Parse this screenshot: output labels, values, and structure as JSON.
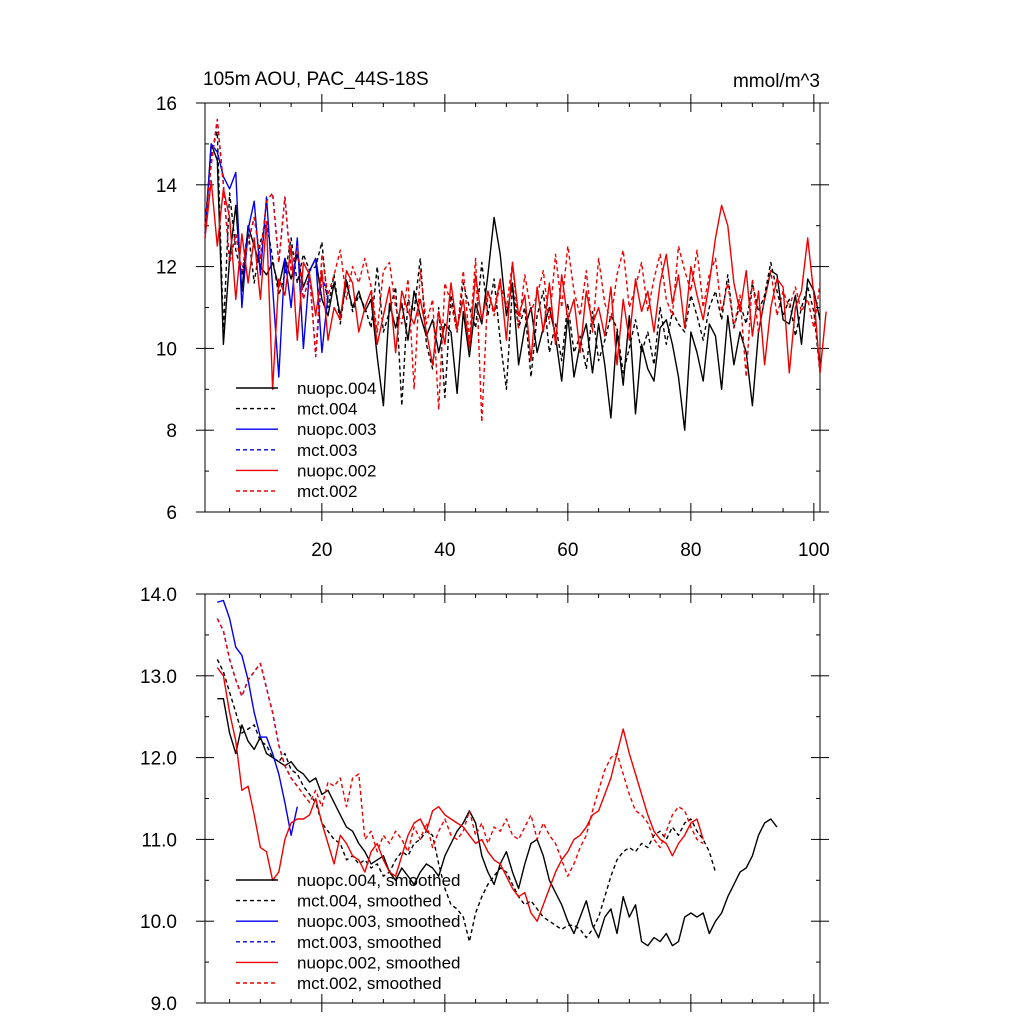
{
  "chart_data": [
    {
      "type": "line",
      "title": "105m AOU, PAC_44S-18S",
      "units": "mmol/m^3",
      "xlim": [
        1,
        101
      ],
      "ylim": [
        6,
        16
      ],
      "xticks": [
        20,
        40,
        60,
        80,
        100
      ],
      "yticks": [
        6,
        8,
        10,
        12,
        14,
        16
      ],
      "ytick_labels": [
        "6",
        "8",
        "10",
        "12",
        "14",
        "16"
      ],
      "legend_position": "lower-left",
      "series": [
        {
          "name": "nuopc.004",
          "color": "#000000",
          "dash": "solid",
          "x_start": 1,
          "values": [
            12.8,
            15.0,
            14.6,
            10.1,
            12.2,
            13.5,
            11.4,
            13.0,
            12.5,
            12.0,
            11.8,
            12.1,
            11.5,
            12.2,
            11.7,
            12.3,
            11.5,
            11.9,
            12.2,
            11.2,
            10.8,
            11.6,
            10.8,
            11.6,
            11.0,
            11.4,
            10.9,
            11.2,
            9.8,
            8.6,
            11.1,
            10.5,
            11.1,
            10.2,
            11.4,
            10.8,
            10.3,
            10.7,
            9.9,
            10.6,
            10.4,
            8.9,
            10.9,
            9.8,
            11.1,
            10.6,
            11.8,
            13.2,
            12.3,
            10.8,
            11.6,
            9.6,
            10.5,
            11.0,
            9.9,
            10.5,
            11.0,
            10.3,
            9.2,
            10.8,
            9.3,
            10.1,
            10.6,
            9.4,
            10.6,
            9.6,
            8.3,
            10.4,
            9.1,
            10.8,
            8.4,
            10.1,
            9.5,
            9.2,
            10.5,
            10.7,
            10.1,
            9.3,
            8.0,
            10.4,
            9.9,
            9.2,
            10.6,
            10.3,
            9.0,
            10.8,
            9.6,
            10.4,
            9.9,
            8.6,
            10.4,
            11.2,
            11.9,
            11.8,
            10.7,
            10.6,
            11.3,
            10.1,
            11.7,
            11.4,
            10.7
          ]
        },
        {
          "name": "mct.004",
          "color": "#000000",
          "dash": "dashed",
          "x_start": 1,
          "values": [
            13.0,
            14.8,
            15.3,
            10.4,
            13.8,
            12.4,
            11.8,
            12.9,
            11.6,
            12.6,
            13.1,
            12.2,
            11.3,
            11.8,
            12.7,
            11.6,
            12.3,
            11.9,
            12.0,
            12.6,
            11.0,
            11.8,
            10.6,
            11.7,
            10.9,
            11.3,
            11.0,
            10.5,
            12.0,
            10.4,
            10.9,
            11.5,
            8.6,
            11.2,
            10.9,
            12.2,
            10.1,
            9.5,
            11.0,
            8.8,
            11.3,
            10.4,
            11.6,
            11.0,
            10.5,
            12.1,
            10.8,
            11.7,
            10.2,
            9.0,
            11.5,
            10.5,
            11.0,
            9.3,
            10.8,
            11.4,
            9.9,
            10.6,
            9.7,
            11.1,
            9.9,
            10.3,
            9.5,
            10.9,
            9.7,
            10.2,
            10.8,
            10.5,
            9.4,
            10.0,
            10.7,
            9.9,
            10.4,
            9.6,
            11.0,
            10.1,
            10.9,
            10.6,
            10.4,
            11.3,
            10.8,
            10.2,
            11.0,
            11.4,
            10.7,
            11.8,
            10.5,
            11.1,
            10.6,
            11.6,
            10.9,
            11.3,
            12.1,
            11.4,
            10.8,
            11.2,
            10.3,
            11.0,
            11.5,
            10.9,
            9.4
          ]
        },
        {
          "name": "nuopc.003",
          "color": "#0000ee",
          "dash": "solid",
          "x_start": 1,
          "values": [
            12.7,
            15.0,
            14.8,
            14.2,
            13.9,
            14.3,
            11.0,
            12.9,
            13.6,
            11.8,
            13.7,
            11.5,
            9.3,
            12.2,
            11.0,
            12.7,
            10.0,
            11.9,
            12.2,
            9.9,
            11.3
          ]
        },
        {
          "name": "mct.003",
          "color": "#0000ee",
          "dash": "dashed",
          "x_start": 1,
          "values": [
            13.0,
            14.5,
            15.6,
            14.0,
            12.1,
            12.8,
            11.9,
            12.6,
            13.2,
            12.2,
            13.6,
            13.8,
            12.1,
            13.7,
            11.9,
            12.5,
            11.2,
            11.8,
            9.8,
            11.8,
            11.2
          ]
        },
        {
          "name": "nuopc.002",
          "color": "#ee0000",
          "dash": "solid",
          "x_start": 1,
          "values": [
            12.7,
            14.1,
            12.5,
            13.9,
            13.2,
            11.2,
            12.8,
            11.6,
            12.7,
            11.2,
            13.1,
            9.0,
            11.7,
            11.3,
            12.5,
            10.2,
            12.1,
            11.8,
            10.8,
            11.9,
            10.2,
            11.0,
            10.7,
            11.9,
            11.6,
            10.4,
            11.0,
            11.4,
            10.1,
            10.8,
            11.5,
            9.9,
            11.4,
            10.9,
            10.6,
            11.2,
            10.4,
            9.6,
            10.9,
            10.1,
            11.6,
            10.5,
            11.2,
            10.0,
            11.8,
            10.7,
            11.4,
            10.9,
            11.7,
            10.2,
            12.1,
            10.8,
            11.3,
            9.7,
            11.5,
            10.4,
            11.6,
            10.1,
            11.8,
            10.7,
            11.2,
            9.9,
            11.4,
            10.6,
            11.0,
            10.3,
            11.5,
            9.6,
            11.2,
            10.2,
            11.7,
            10.9,
            11.4,
            10.4,
            11.6,
            12.3,
            11.1,
            11.8,
            10.5,
            12.0,
            11.3,
            10.7,
            11.6,
            12.7,
            13.5,
            13.0,
            11.6,
            10.9,
            11.9,
            10.3,
            11.4,
            9.6,
            11.0,
            11.7,
            11.5,
            9.4,
            11.0,
            11.4,
            12.7,
            11.3,
            9.4,
            10.9
          ]
        },
        {
          "name": "mct.002",
          "color": "#ee0000",
          "dash": "dashed",
          "x_start": 1,
          "values": [
            13.0,
            14.5,
            15.6,
            14.0,
            12.1,
            12.8,
            11.9,
            12.6,
            13.2,
            12.2,
            13.6,
            13.8,
            12.1,
            13.7,
            11.9,
            12.5,
            11.2,
            11.8,
            9.8,
            12.3,
            11.3,
            11.8,
            12.4,
            11.2,
            12.0,
            11.6,
            12.2,
            11.5,
            10.4,
            11.9,
            12.1,
            11.0,
            10.6,
            11.7,
            9.0,
            11.9,
            10.6,
            11.2,
            8.5,
            11.6,
            11.1,
            10.4,
            11.9,
            10.2,
            12.2,
            8.2,
            11.4,
            10.8,
            11.6,
            11.0,
            12.1,
            10.5,
            11.8,
            10.9,
            11.3,
            11.9,
            10.6,
            12.3,
            11.0,
            12.5,
            11.4,
            10.8,
            11.9,
            10.4,
            12.2,
            11.1,
            10.7,
            11.8,
            12.4,
            11.0,
            11.5,
            12.1,
            10.9,
            11.7,
            12.3,
            11.2,
            10.8,
            12.5,
            11.9,
            11.4,
            12.4,
            11.0,
            11.8,
            12.2,
            10.9,
            11.6,
            10.5,
            11.3,
            9.3,
            11.7,
            10.4,
            11.2,
            11.9,
            10.8,
            11.4,
            11.0,
            11.5,
            10.9,
            11.2,
            10.5,
            11.6
          ]
        }
      ],
      "legend": [
        {
          "label": "nuopc.004",
          "color": "#000000",
          "dash": "solid"
        },
        {
          "label": "mct.004",
          "color": "#000000",
          "dash": "dashed"
        },
        {
          "label": "nuopc.003",
          "color": "#0000ee",
          "dash": "solid"
        },
        {
          "label": "mct.003",
          "color": "#0000ee",
          "dash": "dashed"
        },
        {
          "label": "nuopc.002",
          "color": "#ee0000",
          "dash": "solid"
        },
        {
          "label": "mct.002",
          "color": "#ee0000",
          "dash": "dashed"
        }
      ]
    },
    {
      "type": "line",
      "title": "",
      "xlim": [
        1,
        101
      ],
      "ylim": [
        9.0,
        14.0
      ],
      "xticks": [
        20,
        40,
        60,
        80,
        100
      ],
      "show_xtick_labels": false,
      "yticks": [
        9.0,
        10.0,
        11.0,
        12.0,
        13.0,
        14.0
      ],
      "ytick_labels": [
        "9.0",
        "10.0",
        "11.0",
        "12.0",
        "13.0",
        "14.0"
      ],
      "legend_position": "lower-left",
      "series": [
        {
          "name": "nuopc.004, smoothed",
          "color": "#000000",
          "dash": "solid",
          "x_start": 3,
          "values": [
            12.72,
            12.72,
            12.3,
            12.05,
            12.4,
            12.2,
            12.1,
            12.25,
            12.05,
            12.0,
            11.95,
            11.9,
            11.95,
            11.85,
            11.8,
            11.7,
            11.75,
            11.55,
            11.6,
            11.45,
            11.3,
            11.15,
            11.1,
            10.95,
            10.85,
            10.7,
            10.75,
            10.8,
            10.6,
            10.5,
            10.65,
            10.55,
            10.45,
            10.6,
            10.7,
            10.65,
            10.55,
            10.8,
            10.95,
            11.1,
            11.2,
            11.35,
            11.2,
            10.8,
            10.6,
            10.45,
            10.7,
            10.85,
            10.6,
            10.4,
            10.7,
            10.95,
            11.0,
            10.8,
            10.5,
            10.35,
            10.2,
            10.0,
            9.85,
            10.05,
            10.25,
            9.95,
            9.8,
            10.05,
            10.15,
            9.85,
            10.3,
            10.05,
            10.2,
            9.75,
            9.7,
            9.8,
            9.75,
            9.85,
            9.7,
            9.75,
            10.05,
            10.1,
            10.05,
            10.1,
            9.85,
            10.0,
            10.1,
            10.3,
            10.45,
            10.6,
            10.65,
            10.8,
            11.05,
            11.2,
            11.25,
            11.15
          ]
        },
        {
          "name": "mct.004, smoothed",
          "color": "#000000",
          "dash": "dashed",
          "x_start": 3,
          "values": [
            13.2,
            13.05,
            12.8,
            12.55,
            12.3,
            12.35,
            12.4,
            12.2,
            12.15,
            12.0,
            11.95,
            12.05,
            11.85,
            11.8,
            11.65,
            11.55,
            11.45,
            11.2,
            11.1,
            11.0,
            10.95,
            10.75,
            10.8,
            10.7,
            10.75,
            10.65,
            10.7,
            10.55,
            10.6,
            10.75,
            10.85,
            10.8,
            10.95,
            11.0,
            11.1,
            11.05,
            10.7,
            10.4,
            10.2,
            10.15,
            10.05,
            9.75,
            10.1,
            10.3,
            10.45,
            10.55,
            10.65,
            10.6,
            10.45,
            10.3,
            10.2,
            10.25,
            10.15,
            10.05,
            10.0,
            9.95,
            9.9,
            9.95,
            9.95,
            9.9,
            9.8,
            9.9,
            10.05,
            10.3,
            10.55,
            10.75,
            10.85,
            10.9,
            10.85,
            10.95,
            10.9,
            11.05,
            11.1,
            11.0,
            11.15,
            11.05,
            11.2,
            11.25,
            11.1,
            11.0,
            10.85,
            10.6
          ]
        },
        {
          "name": "nuopc.003, smoothed",
          "color": "#0000ee",
          "dash": "solid",
          "x_start": 3,
          "values": [
            13.9,
            13.92,
            13.7,
            13.35,
            13.25,
            12.95,
            12.55,
            12.25,
            12.25,
            12.05,
            11.8,
            11.45,
            11.05,
            11.4
          ]
        },
        {
          "name": "mct.003, smoothed",
          "color": "#0000ee",
          "dash": "dashed",
          "x_start": 3,
          "values": [
            13.7,
            13.55,
            13.2,
            12.95,
            12.75,
            12.95,
            13.05,
            13.15,
            12.85,
            12.55,
            12.15,
            11.9,
            11.75,
            11.65
          ]
        },
        {
          "name": "nuopc.002, smoothed",
          "color": "#ee0000",
          "dash": "solid",
          "x_start": 3,
          "values": [
            13.1,
            13.0,
            12.55,
            12.2,
            11.6,
            11.65,
            11.3,
            10.9,
            10.85,
            10.5,
            10.6,
            11.0,
            11.2,
            11.25,
            11.25,
            11.3,
            11.5,
            11.2,
            10.95,
            10.7,
            11.05,
            10.95,
            10.8,
            10.75,
            10.6,
            10.85,
            10.95,
            10.75,
            10.6,
            10.55,
            10.8,
            11.05,
            11.2,
            11.25,
            11.1,
            11.35,
            11.4,
            11.3,
            11.25,
            11.2,
            11.15,
            11.05,
            10.95,
            11.0,
            10.85,
            10.75,
            10.7,
            10.55,
            10.4,
            10.3,
            10.35,
            10.1,
            10.0,
            10.2,
            10.4,
            10.6,
            10.75,
            10.85,
            11.0,
            11.05,
            11.15,
            11.3,
            11.35,
            11.55,
            11.75,
            12.05,
            12.35,
            12.05,
            11.8,
            11.55,
            11.3,
            11.1,
            11.0,
            10.95,
            10.8,
            10.95,
            11.05,
            11.2,
            11.25,
            11.0
          ]
        },
        {
          "name": "mct.002, smoothed",
          "color": "#ee0000",
          "dash": "dashed",
          "x_start": 3,
          "values": [
            13.7,
            13.55,
            13.2,
            12.95,
            12.75,
            12.95,
            13.05,
            13.15,
            12.85,
            12.55,
            12.15,
            11.9,
            11.75,
            11.65,
            11.55,
            11.45,
            11.6,
            11.4,
            11.7,
            11.65,
            11.75,
            11.4,
            11.75,
            11.8,
            11.0,
            11.1,
            10.85,
            11.05,
            10.95,
            11.1,
            11.0,
            10.85,
            11.15,
            11.0,
            11.2,
            10.9,
            11.1,
            11.25,
            11.05,
            11.0,
            11.1,
            11.35,
            11.05,
            11.2,
            10.95,
            11.15,
            11.1,
            11.25,
            11.05,
            11.0,
            11.15,
            11.3,
            11.0,
            11.2,
            11.05,
            10.95,
            10.75,
            10.55,
            10.7,
            10.9,
            11.05,
            11.35,
            11.6,
            11.85,
            12.0,
            12.05,
            11.8,
            11.55,
            11.35,
            11.3,
            11.2,
            11.0,
            10.9,
            11.1,
            11.3,
            11.4,
            11.35,
            11.15,
            11.0,
            10.95
          ]
        }
      ],
      "legend": [
        {
          "label": "nuopc.004, smoothed",
          "color": "#000000",
          "dash": "solid"
        },
        {
          "label": "mct.004, smoothed",
          "color": "#000000",
          "dash": "dashed"
        },
        {
          "label": "nuopc.003, smoothed",
          "color": "#0000ee",
          "dash": "solid"
        },
        {
          "label": "mct.003, smoothed",
          "color": "#0000ee",
          "dash": "dashed"
        },
        {
          "label": "nuopc.002, smoothed",
          "color": "#ee0000",
          "dash": "solid"
        },
        {
          "label": "mct.002, smoothed",
          "color": "#ee0000",
          "dash": "dashed"
        }
      ]
    }
  ]
}
